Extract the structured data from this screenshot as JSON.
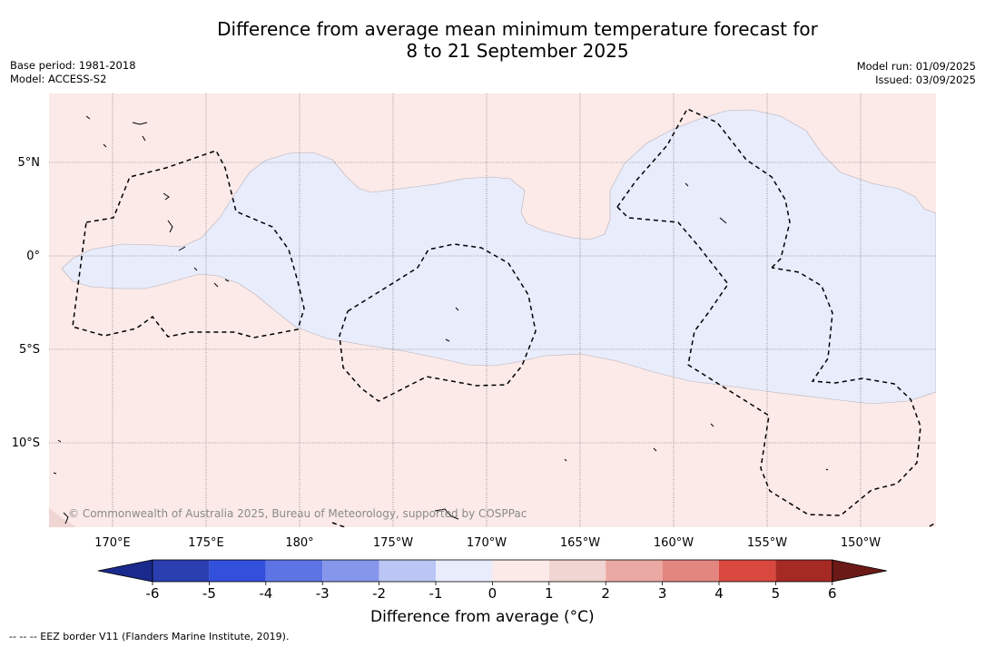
{
  "title": {
    "line1": "Difference from average mean minimum temperature forecast for",
    "line2": "8 to 21 September 2025"
  },
  "meta_left": {
    "base_period": "Base period: 1981-2018",
    "model": "Model: ACCESS-S2"
  },
  "meta_right": {
    "model_run": "Model run: 01/09/2025",
    "issued": "Issued: 03/09/2025"
  },
  "map": {
    "lon_ticks": [
      "170°E",
      "175°E",
      "180°",
      "175°W",
      "170°W",
      "165°W",
      "160°W",
      "155°W",
      "150°W"
    ],
    "lat_ticks": [
      "5°N",
      "0°",
      "5°S",
      "10°S"
    ],
    "copyright": "© Commonwealth of Australia 2025, Bureau of Meteorology, supported by COSPPac",
    "colors": {
      "warm_0_1": "#fbeae8",
      "cool_m1_0": "#e8ecfb",
      "gridline": "#555555",
      "eez_border": "#000000"
    }
  },
  "colorbar": {
    "label": "Difference from average (°C)",
    "ticks": [
      "-6",
      "-5",
      "-4",
      "-3",
      "-2",
      "-1",
      "0",
      "1",
      "2",
      "3",
      "4",
      "5",
      "6"
    ],
    "colors": [
      "#1a2a8c",
      "#2a3eb0",
      "#3350dc",
      "#5c74e4",
      "#8696eb",
      "#bcc6f4",
      "#e8ecfb",
      "#fbeae8",
      "#f1d5d2",
      "#eba9a4",
      "#e48680",
      "#d9483f",
      "#a62a24",
      "#6b1a17"
    ]
  },
  "footnote": "-- -- -- EEZ border V11 (Flanders Marine Institute, 2019)."
}
